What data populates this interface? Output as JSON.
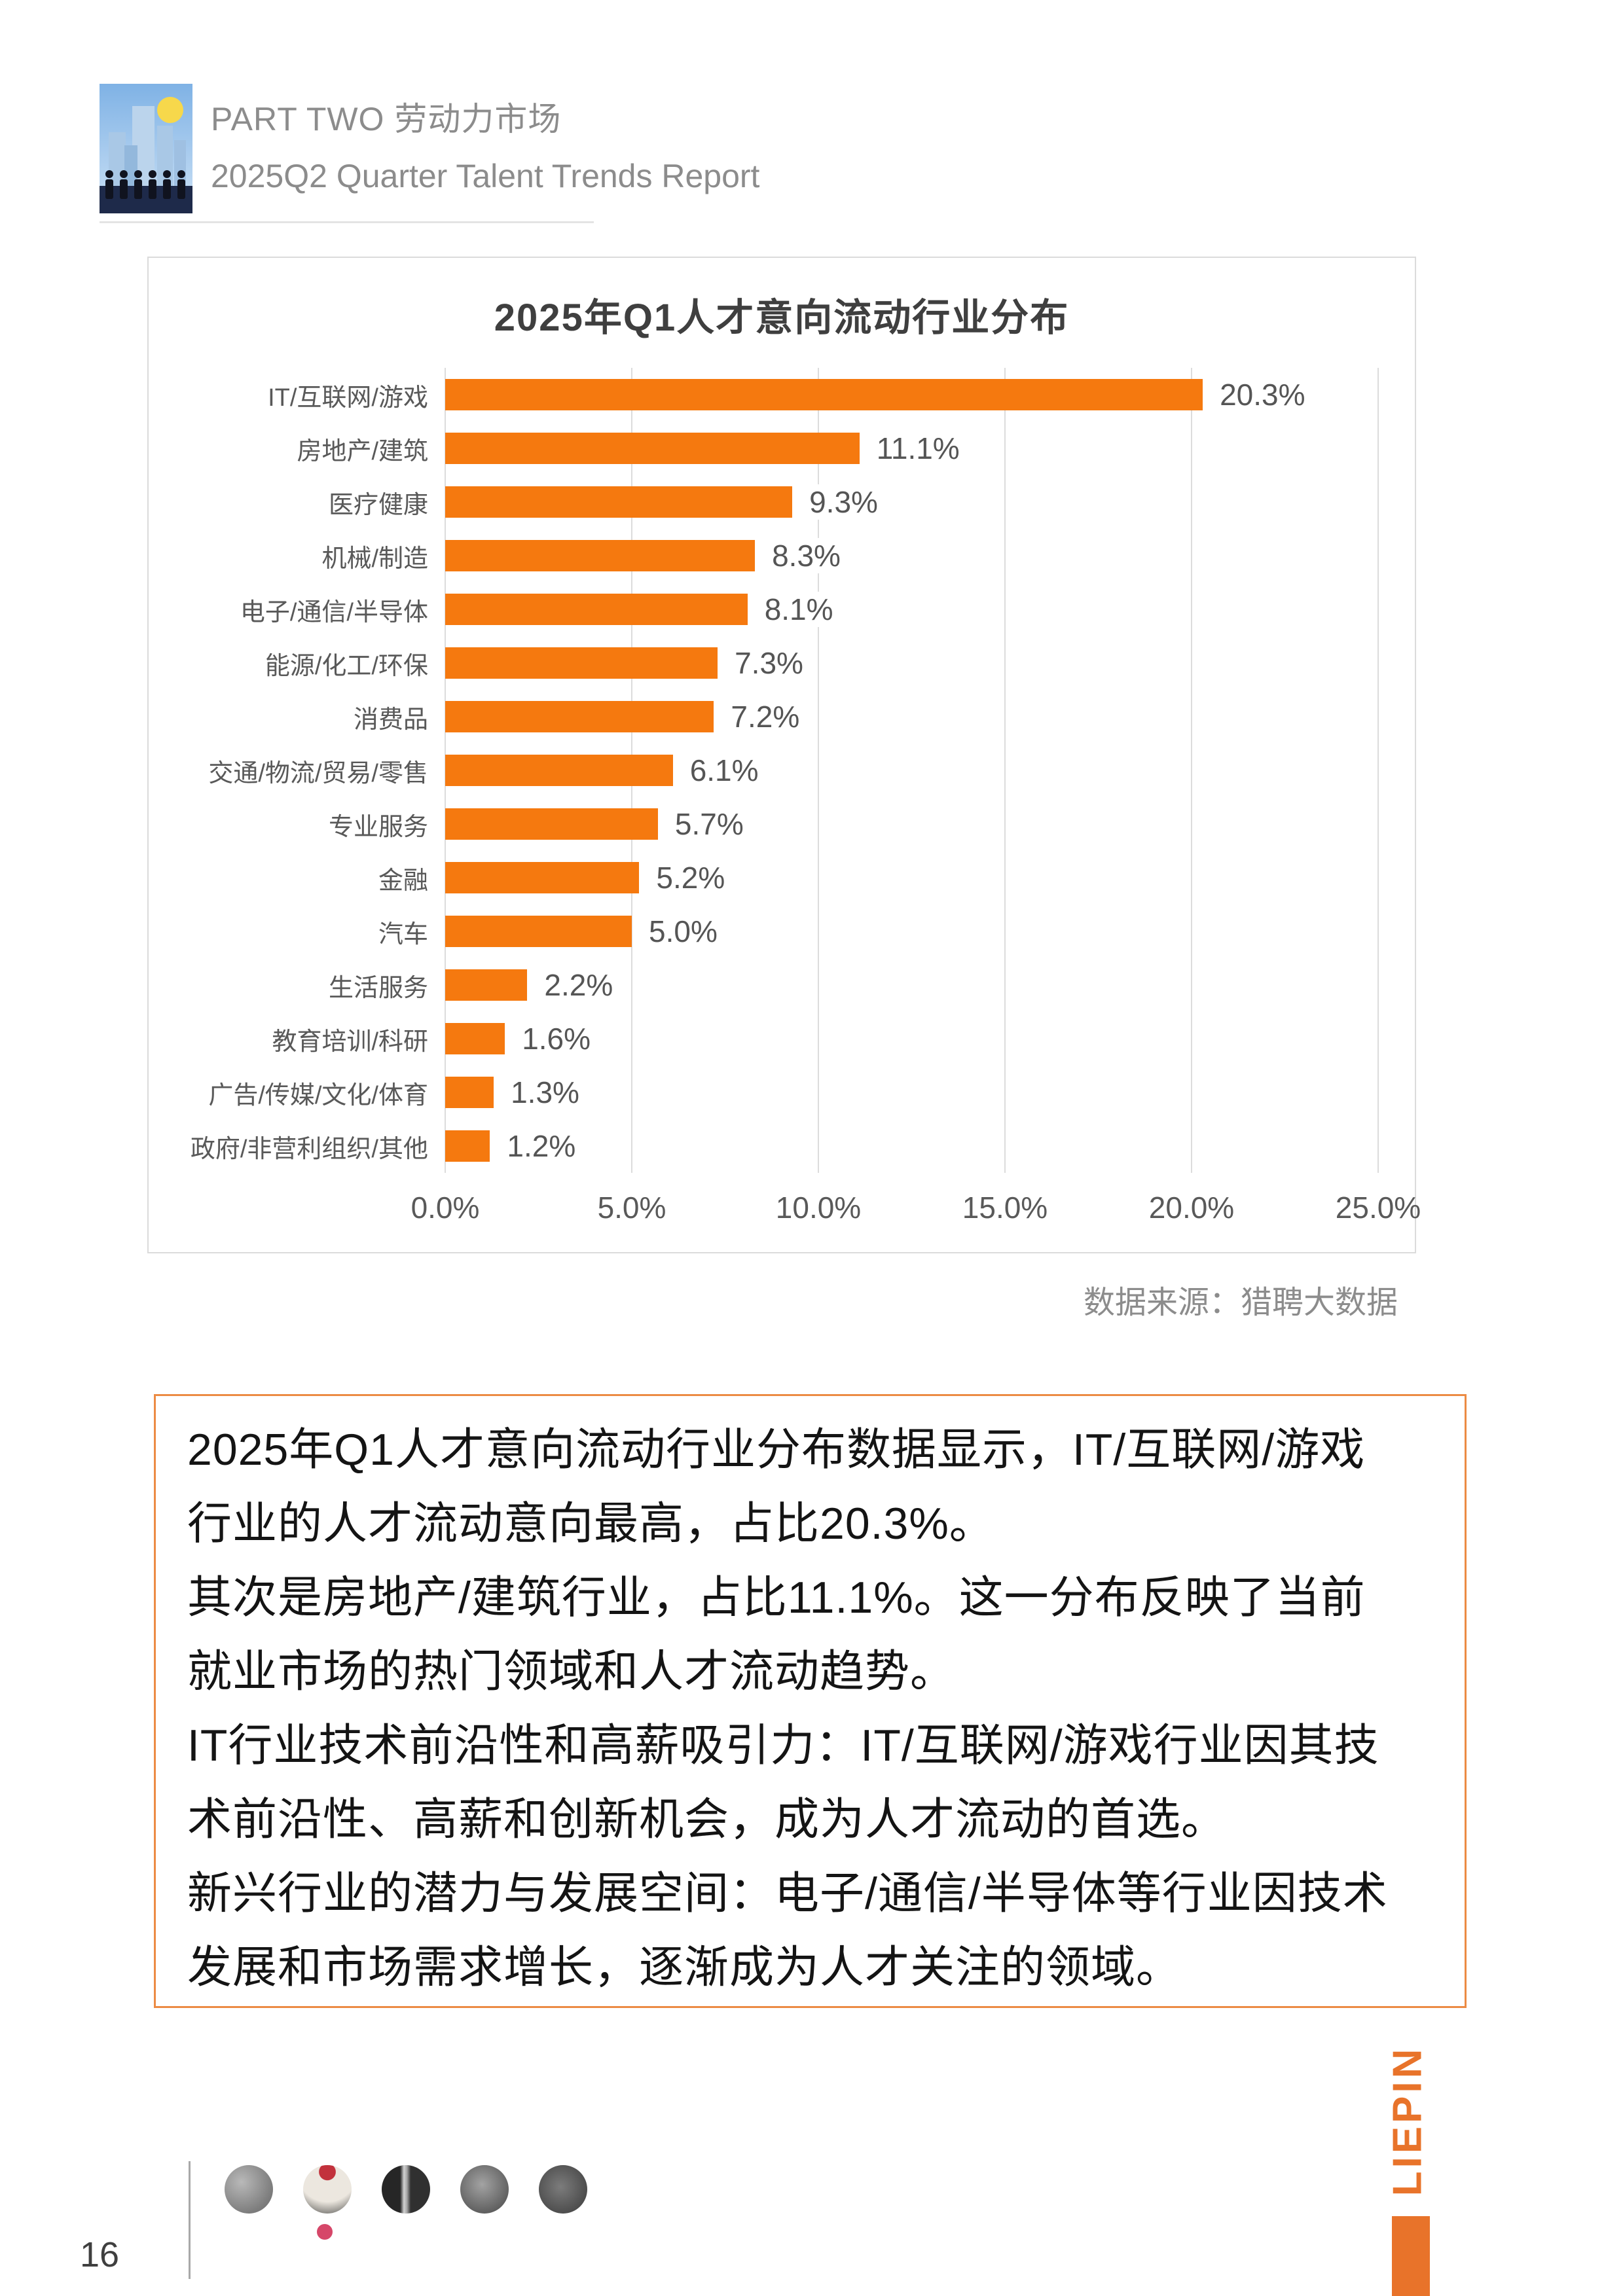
{
  "header": {
    "part_label": "PART TWO 劳动力市场",
    "report_title": "2025Q2 Quarter Talent Trends Report"
  },
  "chart_data": {
    "type": "bar",
    "orientation": "horizontal",
    "title": "2025年Q1人才意向流动行业分布",
    "categories": [
      "IT/互联网/游戏",
      "房地产/建筑",
      "医疗健康",
      "机械/制造",
      "电子/通信/半导体",
      "能源/化工/环保",
      "消费品",
      "交通/物流/贸易/零售",
      "专业服务",
      "金融",
      "汽车",
      "生活服务",
      "教育培训/科研",
      "广告/传媒/文化/体育",
      "政府/非营利组织/其他"
    ],
    "values": [
      20.3,
      11.1,
      9.3,
      8.3,
      8.1,
      7.3,
      7.2,
      6.1,
      5.7,
      5.2,
      5.0,
      2.2,
      1.6,
      1.3,
      1.2
    ],
    "value_labels": [
      "20.3%",
      "11.1%",
      "9.3%",
      "8.3%",
      "8.1%",
      "7.3%",
      "7.2%",
      "6.1%",
      "5.7%",
      "5.2%",
      "5.0%",
      "2.2%",
      "1.6%",
      "1.3%",
      "1.2%"
    ],
    "x_ticks": [
      "0.0%",
      "5.0%",
      "10.0%",
      "15.0%",
      "20.0%",
      "25.0%"
    ],
    "xlim": [
      0,
      25
    ],
    "grid": "vertical",
    "legend": "none",
    "bar_color": "#F5790F"
  },
  "source_note": "数据来源：猎聘大数据",
  "analysis": {
    "lines": [
      "2025年Q1人才意向流动行业分布数据显示，IT/互联网/游戏",
      "行业的人才流动意向最高，占比20.3%。",
      "其次是房地产/建筑行业，占比11.1%。这一分布反映了当前",
      "就业市场的热门领域和人才流动趋势。",
      "IT行业技术前沿性和高薪吸引力：IT/互联网/游戏行业因其技",
      "术前沿性、高薪和创新机会，成为人才流动的首选。",
      "新兴行业的潜力与发展空间：电子/通信/半导体等行业因技术",
      "发展和市场需求增长，逐渐成为人才关注的领域。"
    ]
  },
  "footer": {
    "page_number": "16",
    "brand": "LIEPIN"
  },
  "colors": {
    "bar_orange": "#F5790F",
    "brand_orange": "#E8732A",
    "box_border_orange": "#EC8B44",
    "gridline_gray": "#DCDCDC",
    "text_gray": "#595959"
  }
}
